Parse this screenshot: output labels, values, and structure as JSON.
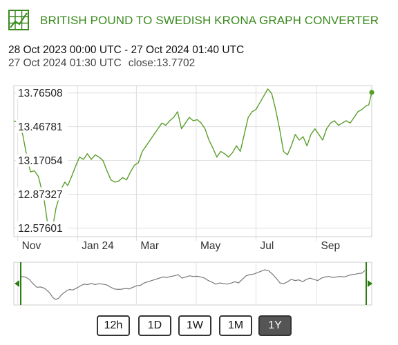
{
  "header": {
    "title": "BRITISH POUND TO SWEDISH KRONA GRAPH CONVERTER",
    "logo_icon": "chart-grid-icon",
    "accent_color": "#3a8a1e"
  },
  "range_label": "28 Oct 2023 00:00 UTC - 27 Oct 2024 01:40 UTC",
  "hover": {
    "time": "27 Oct 2024 01:30 UTC",
    "close_label": "close:13.7702"
  },
  "chart_data": {
    "type": "line",
    "x_start": "2023-10-28",
    "x_end": "2024-10-27",
    "ylim": [
      12.5,
      13.83
    ],
    "y_ticks": [
      "13.76508",
      "13.46781",
      "13.17054",
      "12.87327",
      "12.57601"
    ],
    "x_ticks": [
      {
        "label": "Nov",
        "date": "2023-11-01"
      },
      {
        "label": "Jan 24",
        "date": "2024-01-01"
      },
      {
        "label": "Mar",
        "date": "2024-03-01"
      },
      {
        "label": "May",
        "date": "2024-05-01"
      },
      {
        "label": "Jul",
        "date": "2024-07-01"
      },
      {
        "label": "Sep",
        "date": "2024-09-01"
      }
    ],
    "series": [
      {
        "color": "#5a9e2a",
        "points": [
          [
            "2023-10-28",
            13.52
          ],
          [
            "2023-11-02",
            13.5
          ],
          [
            "2023-11-06",
            13.4
          ],
          [
            "2023-11-10",
            13.22
          ],
          [
            "2023-11-14",
            13.07
          ],
          [
            "2023-11-18",
            13.08
          ],
          [
            "2023-11-22",
            13.03
          ],
          [
            "2023-11-25",
            12.93
          ],
          [
            "2023-11-28",
            12.82
          ],
          [
            "2023-12-01",
            12.64
          ],
          [
            "2023-12-04",
            12.56
          ],
          [
            "2023-12-07",
            12.6
          ],
          [
            "2023-12-10",
            12.75
          ],
          [
            "2023-12-13",
            12.84
          ],
          [
            "2023-12-16",
            12.93
          ],
          [
            "2023-12-19",
            12.98
          ],
          [
            "2023-12-22",
            12.95
          ],
          [
            "2023-12-26",
            13.03
          ],
          [
            "2023-12-30",
            13.12
          ],
          [
            "2024-01-03",
            13.2
          ],
          [
            "2024-01-07",
            13.18
          ],
          [
            "2024-01-11",
            13.23
          ],
          [
            "2024-01-15",
            13.18
          ],
          [
            "2024-01-19",
            13.22
          ],
          [
            "2024-01-23",
            13.2
          ],
          [
            "2024-01-27",
            13.17
          ],
          [
            "2024-01-31",
            13.08
          ],
          [
            "2024-02-04",
            13.0
          ],
          [
            "2024-02-08",
            12.98
          ],
          [
            "2024-02-12",
            12.99
          ],
          [
            "2024-02-16",
            13.02
          ],
          [
            "2024-02-20",
            13.0
          ],
          [
            "2024-02-24",
            13.07
          ],
          [
            "2024-02-28",
            13.13
          ],
          [
            "2024-03-03",
            13.15
          ],
          [
            "2024-03-07",
            13.25
          ],
          [
            "2024-03-11",
            13.3
          ],
          [
            "2024-03-15",
            13.35
          ],
          [
            "2024-03-19",
            13.4
          ],
          [
            "2024-03-23",
            13.45
          ],
          [
            "2024-03-27",
            13.5
          ],
          [
            "2024-03-31",
            13.48
          ],
          [
            "2024-04-04",
            13.52
          ],
          [
            "2024-04-08",
            13.55
          ],
          [
            "2024-04-12",
            13.6
          ],
          [
            "2024-04-16",
            13.45
          ],
          [
            "2024-04-20",
            13.5
          ],
          [
            "2024-04-24",
            13.55
          ],
          [
            "2024-04-28",
            13.52
          ],
          [
            "2024-05-02",
            13.53
          ],
          [
            "2024-05-06",
            13.5
          ],
          [
            "2024-05-10",
            13.45
          ],
          [
            "2024-05-14",
            13.35
          ],
          [
            "2024-05-18",
            13.28
          ],
          [
            "2024-05-22",
            13.2
          ],
          [
            "2024-05-26",
            13.25
          ],
          [
            "2024-05-30",
            13.23
          ],
          [
            "2024-06-03",
            13.2
          ],
          [
            "2024-06-07",
            13.24
          ],
          [
            "2024-06-11",
            13.3
          ],
          [
            "2024-06-15",
            13.25
          ],
          [
            "2024-06-19",
            13.4
          ],
          [
            "2024-06-23",
            13.55
          ],
          [
            "2024-06-27",
            13.6
          ],
          [
            "2024-07-01",
            13.62
          ],
          [
            "2024-07-05",
            13.68
          ],
          [
            "2024-07-09",
            13.74
          ],
          [
            "2024-07-13",
            13.8
          ],
          [
            "2024-07-17",
            13.76
          ],
          [
            "2024-07-21",
            13.62
          ],
          [
            "2024-07-25",
            13.45
          ],
          [
            "2024-07-29",
            13.25
          ],
          [
            "2024-08-02",
            13.22
          ],
          [
            "2024-08-06",
            13.3
          ],
          [
            "2024-08-10",
            13.4
          ],
          [
            "2024-08-14",
            13.35
          ],
          [
            "2024-08-18",
            13.38
          ],
          [
            "2024-08-22",
            13.3
          ],
          [
            "2024-08-26",
            13.4
          ],
          [
            "2024-08-30",
            13.45
          ],
          [
            "2024-09-03",
            13.4
          ],
          [
            "2024-09-07",
            13.35
          ],
          [
            "2024-09-11",
            13.45
          ],
          [
            "2024-09-15",
            13.5
          ],
          [
            "2024-09-19",
            13.52
          ],
          [
            "2024-09-23",
            13.48
          ],
          [
            "2024-09-27",
            13.5
          ],
          [
            "2024-10-01",
            13.52
          ],
          [
            "2024-10-05",
            13.5
          ],
          [
            "2024-10-09",
            13.55
          ],
          [
            "2024-10-13",
            13.6
          ],
          [
            "2024-10-17",
            13.62
          ],
          [
            "2024-10-21",
            13.65
          ],
          [
            "2024-10-24",
            13.66
          ],
          [
            "2024-10-27",
            13.77
          ]
        ]
      }
    ],
    "overview_color": "#777777",
    "grid": true
  },
  "timeframes": [
    "12h",
    "1D",
    "1W",
    "1M",
    "1Y"
  ],
  "active_timeframe": "1Y"
}
